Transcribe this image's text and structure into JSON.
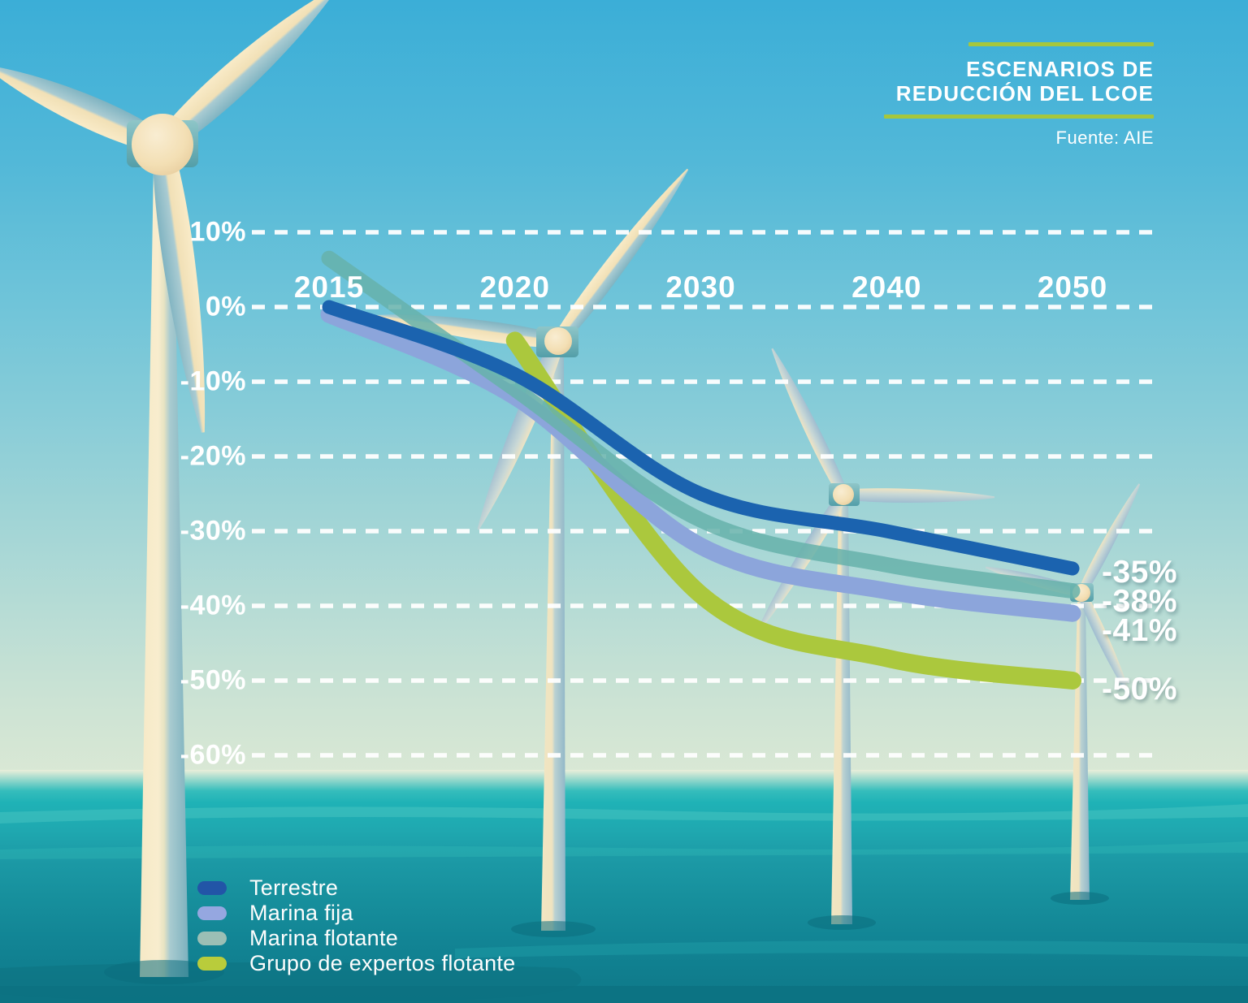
{
  "header": {
    "title_line1": "ESCENARIOS DE",
    "title_line2": "REDUCCIÓN DEL LCOE",
    "source": "Fuente: AIE",
    "accent_color": "#A6C73C"
  },
  "chart_data": {
    "type": "line",
    "title": "Escenarios de reducción del LCOE",
    "source": "Fuente: AIE",
    "unit": "%",
    "grid": true,
    "legend_position": "bottom-left",
    "background": "illustrated offshore wind turbines over sea",
    "x": [
      "2015",
      "2020",
      "2030",
      "2040",
      "2050"
    ],
    "ylim": [
      -60,
      10
    ],
    "y_ticks": [
      {
        "label": "10%",
        "value": 10
      },
      {
        "label": "0%",
        "value": 0
      },
      {
        "label": "-10%",
        "value": -10
      },
      {
        "label": "-20%",
        "value": -20
      },
      {
        "label": "-30%",
        "value": -30
      },
      {
        "label": "-40%",
        "value": -40
      },
      {
        "label": "-50%",
        "value": -50
      },
      {
        "label": "-60%",
        "value": -60
      }
    ],
    "series": [
      {
        "name": "Terrestre",
        "color": "#1B63AF",
        "values": [
          0,
          -9,
          -25,
          -30,
          -35
        ],
        "end_label": "-35%"
      },
      {
        "name": "Marina fija",
        "color": "#8CA5DB",
        "values": [
          -1,
          -12,
          -32,
          -38,
          -41
        ],
        "end_label": "-41%"
      },
      {
        "name": "Marina flotante",
        "color": "#66B1AA",
        "values": [
          6.5,
          -11,
          -28.5,
          -34.5,
          -38
        ],
        "end_label": "-38%"
      },
      {
        "name": "Grupo de expertos flotante",
        "color": "#ABC83D",
        "values": [
          null,
          -4.5,
          -38.5,
          -47,
          -50
        ],
        "end_label": "-50%"
      }
    ],
    "end_labels_top_to_bottom": [
      "-35%",
      "-38%",
      "-41%",
      "-50%"
    ],
    "legend": [
      {
        "label": "Terrestre",
        "color": "#2255A7"
      },
      {
        "label": "Marina fija",
        "color": "#95A7E0"
      },
      {
        "label": "Marina flotante",
        "color": "#9BBFB5"
      },
      {
        "label": "Grupo de expertos flotante",
        "color": "#B9CC3B"
      }
    ]
  }
}
